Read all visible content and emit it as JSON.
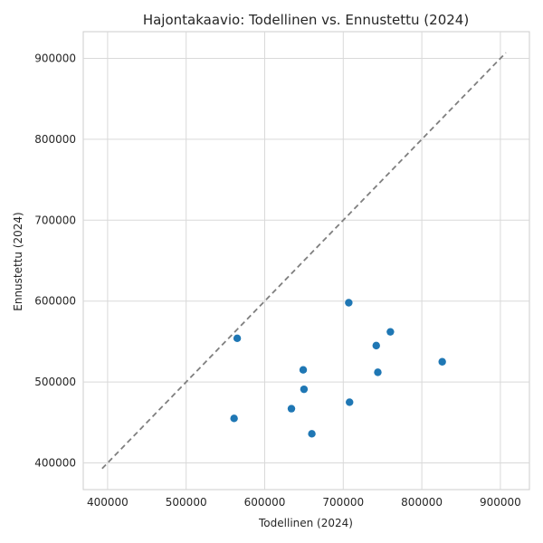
{
  "chart_data": {
    "type": "scatter",
    "title": "Hajontakaavio: Todellinen vs. Ennustettu (2024)",
    "xlabel": "Todellinen (2024)",
    "ylabel": "Ennustettu (2024)",
    "xlim": [
      369000,
      937000
    ],
    "ylim": [
      367000,
      933000
    ],
    "xticks": [
      400000,
      500000,
      600000,
      700000,
      800000,
      900000
    ],
    "yticks": [
      400000,
      500000,
      600000,
      700000,
      800000,
      900000
    ],
    "xtick_labels": [
      "400000",
      "500000",
      "600000",
      "700000",
      "800000",
      "900000"
    ],
    "ytick_labels": [
      "400000",
      "500000",
      "600000",
      "700000",
      "800000",
      "900000"
    ],
    "grid": true,
    "reference_line": {
      "style": "dashed",
      "color": "#7f7f7f",
      "x": [
        393000,
        907000
      ],
      "y": [
        393000,
        907000
      ]
    },
    "series": [
      {
        "color": "#1f77b4",
        "points": [
          {
            "x": 707000,
            "y": 598000
          },
          {
            "x": 760000,
            "y": 562000
          },
          {
            "x": 565000,
            "y": 554000
          },
          {
            "x": 742000,
            "y": 545000
          },
          {
            "x": 826000,
            "y": 525000
          },
          {
            "x": 649000,
            "y": 515000
          },
          {
            "x": 744000,
            "y": 512000
          },
          {
            "x": 650000,
            "y": 491000
          },
          {
            "x": 708000,
            "y": 475000
          },
          {
            "x": 634000,
            "y": 467000
          },
          {
            "x": 561000,
            "y": 455000
          },
          {
            "x": 660000,
            "y": 436000
          }
        ]
      }
    ]
  }
}
